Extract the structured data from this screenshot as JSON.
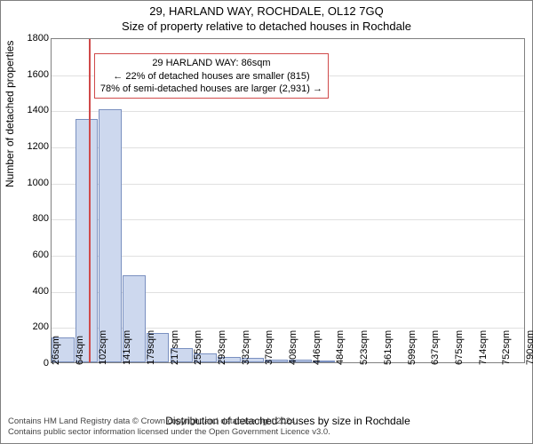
{
  "header": {
    "title": "29, HARLAND WAY, ROCHDALE, OL12 7GQ",
    "subtitle": "Size of property relative to detached houses in Rochdale"
  },
  "chart": {
    "type": "histogram",
    "background_color": "#ffffff",
    "grid_color": "#e0e0e0",
    "axis_color": "#808080",
    "bar_fill": "#cdd8ee",
    "bar_border": "#7a90c0",
    "marker_color": "#d04a4a",
    "annot_border": "#d04a4a",
    "ylim": [
      0,
      1800
    ],
    "ytick_step": 200,
    "y_label": "Number of detached properties",
    "x_label": "Distribution of detached houses by size in Rochdale",
    "x_min": 26,
    "x_max": 790,
    "x_ticks": [
      26,
      64,
      102,
      141,
      179,
      217,
      255,
      293,
      332,
      370,
      408,
      446,
      484,
      523,
      561,
      599,
      637,
      675,
      714,
      752,
      790
    ],
    "x_tick_suffix": "sqm",
    "bars": [
      {
        "x0": 26,
        "x1": 64,
        "value": 140
      },
      {
        "x0": 64,
        "x1": 102,
        "value": 1350
      },
      {
        "x0": 102,
        "x1": 141,
        "value": 1400
      },
      {
        "x0": 141,
        "x1": 179,
        "value": 480
      },
      {
        "x0": 179,
        "x1": 217,
        "value": 160
      },
      {
        "x0": 217,
        "x1": 255,
        "value": 80
      },
      {
        "x0": 255,
        "x1": 293,
        "value": 48
      },
      {
        "x0": 293,
        "x1": 332,
        "value": 30
      },
      {
        "x0": 332,
        "x1": 370,
        "value": 25
      },
      {
        "x0": 370,
        "x1": 408,
        "value": 15
      },
      {
        "x0": 408,
        "x1": 446,
        "value": 15
      },
      {
        "x0": 446,
        "x1": 484,
        "value": 10
      }
    ],
    "marker_x": 86,
    "annotation": {
      "line1": "29 HARLAND WAY: 86sqm",
      "line2": "← 22% of detached houses are smaller (815)",
      "line3": "78% of semi-detached houses are larger (2,931) →"
    }
  },
  "footer": {
    "line1": "Contains HM Land Registry data © Crown copyright and database right 2024.",
    "line2": "Contains public sector information licensed under the Open Government Licence v3.0."
  }
}
